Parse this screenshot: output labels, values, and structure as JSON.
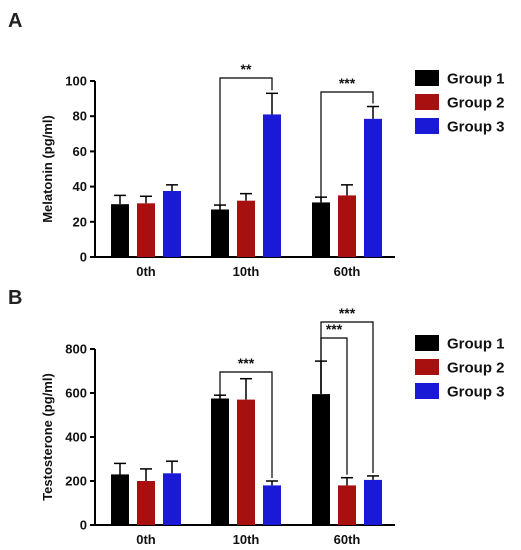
{
  "chart_data": [
    {
      "type": "bar",
      "panel": "A",
      "ylabel": "Melatonin (pg/ml)",
      "ylim": [
        0,
        100
      ],
      "yticks": [
        0,
        20,
        40,
        60,
        80,
        100
      ],
      "categories": [
        "0th",
        "10th",
        "60th"
      ],
      "series": [
        {
          "name": "Group 1",
          "color": "#000000",
          "values": [
            30,
            27,
            31
          ],
          "errors": [
            5,
            2.5,
            3
          ]
        },
        {
          "name": "Group 2",
          "color": "#a80f0f",
          "values": [
            30.5,
            32,
            35
          ],
          "errors": [
            4,
            4,
            6
          ]
        },
        {
          "name": "Group 3",
          "color": "#1a1ad6",
          "values": [
            37.5,
            81,
            78.5
          ],
          "errors": [
            3.5,
            12,
            7
          ]
        }
      ],
      "legend_position": "right",
      "annotations": [
        {
          "label": "**",
          "category": 1,
          "from": 0,
          "to": 2
        },
        {
          "label": "***",
          "category": 2,
          "from": 0,
          "to": 2
        }
      ]
    },
    {
      "type": "bar",
      "panel": "B",
      "ylabel": "Testosterone (pg/ml)",
      "ylim": [
        0,
        800
      ],
      "yticks": [
        0,
        200,
        400,
        600,
        800
      ],
      "categories": [
        "0th",
        "10th",
        "60th"
      ],
      "series": [
        {
          "name": "Group 1",
          "color": "#000000",
          "values": [
            230,
            575,
            595
          ],
          "errors": [
            50,
            15,
            150
          ]
        },
        {
          "name": "Group 2",
          "color": "#a80f0f",
          "values": [
            200,
            570,
            180
          ],
          "errors": [
            55,
            95,
            35
          ]
        },
        {
          "name": "Group 3",
          "color": "#1a1ad6",
          "values": [
            235,
            180,
            205
          ],
          "errors": [
            55,
            20,
            18
          ]
        }
      ],
      "legend_position": "right",
      "annotations": [
        {
          "label": "***",
          "category": 1,
          "from": 0,
          "to": 2
        },
        {
          "label": "***",
          "category": 2,
          "from": 0,
          "to": 1
        },
        {
          "label": "***",
          "category": 2,
          "from": 0,
          "to": 2
        }
      ]
    }
  ]
}
